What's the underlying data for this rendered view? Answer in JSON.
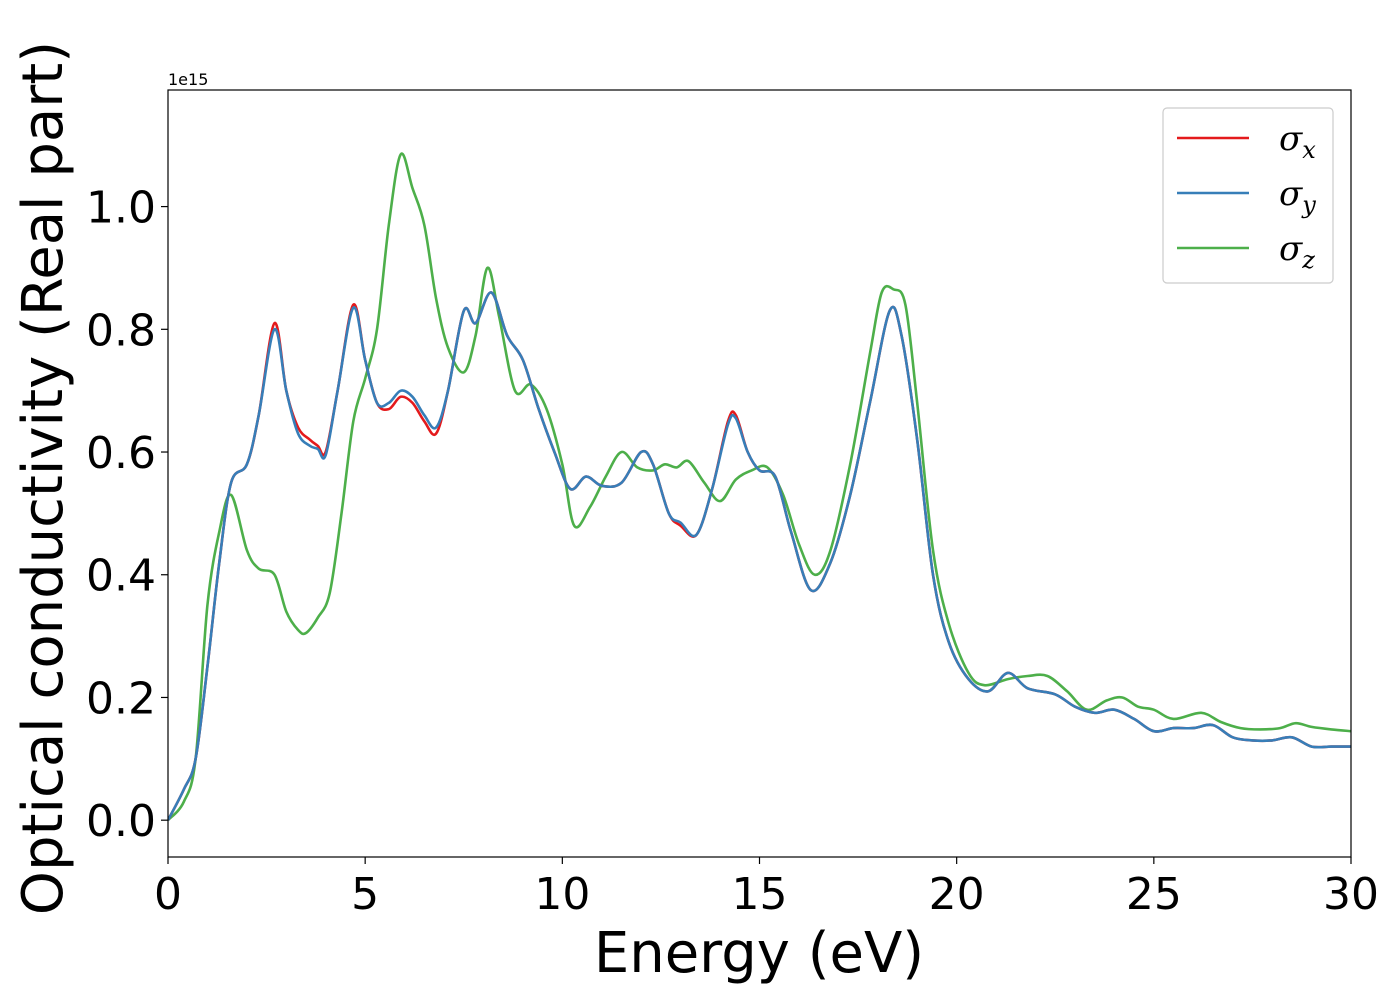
{
  "chart_data": {
    "type": "line",
    "xlabel": "Energy (eV)",
    "ylabel": "Optical conductivity (Real part)",
    "y_offset_text": "1e15",
    "xlim": [
      0,
      30
    ],
    "ylim": [
      -0.06,
      1.19
    ],
    "x_ticks": [
      0,
      5,
      10,
      15,
      20,
      25,
      30
    ],
    "x_tick_labels": [
      "0",
      "5",
      "10",
      "15",
      "20",
      "25",
      "30"
    ],
    "y_ticks": [
      0.0,
      0.2,
      0.4,
      0.6,
      0.8,
      1.0
    ],
    "y_tick_labels": [
      "0.0",
      "0.2",
      "0.4",
      "0.6",
      "0.8",
      "1.0"
    ],
    "grid": false,
    "legend_position": "top-right",
    "series": [
      {
        "name": "σx",
        "symbol": "σ",
        "sub": "x",
        "color": "#e41a1c",
        "points": [
          [
            0,
            0
          ],
          [
            0.4,
            0.05
          ],
          [
            0.7,
            0.1
          ],
          [
            1.0,
            0.25
          ],
          [
            1.3,
            0.42
          ],
          [
            1.6,
            0.55
          ],
          [
            2.0,
            0.58
          ],
          [
            2.3,
            0.66
          ],
          [
            2.7,
            0.81
          ],
          [
            3.0,
            0.7
          ],
          [
            3.3,
            0.64
          ],
          [
            3.6,
            0.62
          ],
          [
            3.8,
            0.61
          ],
          [
            4.0,
            0.6
          ],
          [
            4.3,
            0.7
          ],
          [
            4.7,
            0.84
          ],
          [
            5.0,
            0.75
          ],
          [
            5.3,
            0.68
          ],
          [
            5.6,
            0.67
          ],
          [
            5.9,
            0.69
          ],
          [
            6.2,
            0.68
          ],
          [
            6.5,
            0.65
          ],
          [
            6.8,
            0.63
          ],
          [
            7.1,
            0.7
          ],
          [
            7.5,
            0.83
          ],
          [
            7.8,
            0.81
          ],
          [
            8.2,
            0.86
          ],
          [
            8.6,
            0.79
          ],
          [
            9.0,
            0.75
          ],
          [
            9.4,
            0.67
          ],
          [
            9.8,
            0.6
          ],
          [
            10.2,
            0.54
          ],
          [
            10.6,
            0.56
          ],
          [
            11.0,
            0.545
          ],
          [
            11.5,
            0.55
          ],
          [
            12.0,
            0.6
          ],
          [
            12.3,
            0.58
          ],
          [
            12.7,
            0.5
          ],
          [
            13.0,
            0.48
          ],
          [
            13.4,
            0.465
          ],
          [
            13.8,
            0.54
          ],
          [
            14.2,
            0.65
          ],
          [
            14.4,
            0.66
          ],
          [
            14.7,
            0.6
          ],
          [
            15.0,
            0.57
          ],
          [
            15.4,
            0.56
          ],
          [
            15.8,
            0.47
          ],
          [
            16.3,
            0.375
          ],
          [
            16.8,
            0.42
          ],
          [
            17.3,
            0.53
          ],
          [
            17.8,
            0.68
          ],
          [
            18.3,
            0.83
          ],
          [
            18.6,
            0.79
          ],
          [
            19.0,
            0.62
          ],
          [
            19.4,
            0.4
          ],
          [
            19.8,
            0.29
          ],
          [
            20.3,
            0.23
          ],
          [
            20.8,
            0.21
          ],
          [
            21.3,
            0.24
          ],
          [
            21.8,
            0.215
          ],
          [
            22.5,
            0.205
          ],
          [
            23.0,
            0.185
          ],
          [
            23.5,
            0.175
          ],
          [
            24.0,
            0.18
          ],
          [
            24.5,
            0.165
          ],
          [
            25.0,
            0.145
          ],
          [
            25.5,
            0.15
          ],
          [
            26.0,
            0.15
          ],
          [
            26.5,
            0.155
          ],
          [
            27.0,
            0.135
          ],
          [
            27.5,
            0.13
          ],
          [
            28.0,
            0.13
          ],
          [
            28.5,
            0.135
          ],
          [
            29.0,
            0.12
          ],
          [
            29.5,
            0.12
          ],
          [
            30,
            0.12
          ]
        ]
      },
      {
        "name": "σy",
        "symbol": "σ",
        "sub": "y",
        "color": "#377eb8",
        "points": [
          [
            0,
            0
          ],
          [
            0.4,
            0.05
          ],
          [
            0.7,
            0.1
          ],
          [
            1.0,
            0.25
          ],
          [
            1.3,
            0.42
          ],
          [
            1.6,
            0.55
          ],
          [
            2.0,
            0.58
          ],
          [
            2.3,
            0.66
          ],
          [
            2.7,
            0.8
          ],
          [
            3.0,
            0.7
          ],
          [
            3.3,
            0.63
          ],
          [
            3.6,
            0.61
          ],
          [
            3.8,
            0.605
          ],
          [
            4.0,
            0.595
          ],
          [
            4.3,
            0.7
          ],
          [
            4.7,
            0.835
          ],
          [
            5.0,
            0.75
          ],
          [
            5.3,
            0.68
          ],
          [
            5.6,
            0.68
          ],
          [
            5.9,
            0.7
          ],
          [
            6.2,
            0.69
          ],
          [
            6.5,
            0.66
          ],
          [
            6.8,
            0.64
          ],
          [
            7.1,
            0.7
          ],
          [
            7.5,
            0.83
          ],
          [
            7.8,
            0.81
          ],
          [
            8.2,
            0.86
          ],
          [
            8.6,
            0.79
          ],
          [
            9.0,
            0.75
          ],
          [
            9.4,
            0.67
          ],
          [
            9.8,
            0.6
          ],
          [
            10.2,
            0.54
          ],
          [
            10.6,
            0.56
          ],
          [
            11.0,
            0.545
          ],
          [
            11.5,
            0.55
          ],
          [
            12.0,
            0.6
          ],
          [
            12.3,
            0.58
          ],
          [
            12.7,
            0.5
          ],
          [
            13.0,
            0.485
          ],
          [
            13.4,
            0.465
          ],
          [
            13.8,
            0.54
          ],
          [
            14.2,
            0.645
          ],
          [
            14.4,
            0.655
          ],
          [
            14.7,
            0.6
          ],
          [
            15.0,
            0.57
          ],
          [
            15.4,
            0.56
          ],
          [
            15.8,
            0.47
          ],
          [
            16.3,
            0.375
          ],
          [
            16.8,
            0.42
          ],
          [
            17.3,
            0.53
          ],
          [
            17.8,
            0.68
          ],
          [
            18.3,
            0.83
          ],
          [
            18.6,
            0.79
          ],
          [
            19.0,
            0.62
          ],
          [
            19.4,
            0.4
          ],
          [
            19.8,
            0.29
          ],
          [
            20.3,
            0.23
          ],
          [
            20.8,
            0.21
          ],
          [
            21.3,
            0.24
          ],
          [
            21.8,
            0.215
          ],
          [
            22.5,
            0.205
          ],
          [
            23.0,
            0.185
          ],
          [
            23.5,
            0.175
          ],
          [
            24.0,
            0.18
          ],
          [
            24.5,
            0.165
          ],
          [
            25.0,
            0.145
          ],
          [
            25.5,
            0.15
          ],
          [
            26.0,
            0.15
          ],
          [
            26.5,
            0.155
          ],
          [
            27.0,
            0.135
          ],
          [
            27.5,
            0.13
          ],
          [
            28.0,
            0.13
          ],
          [
            28.5,
            0.135
          ],
          [
            29.0,
            0.12
          ],
          [
            29.5,
            0.12
          ],
          [
            30,
            0.12
          ]
        ]
      },
      {
        "name": "σz",
        "symbol": "σ",
        "sub": "z",
        "color": "#4daf4a",
        "points": [
          [
            0,
            0
          ],
          [
            0.4,
            0.03
          ],
          [
            0.7,
            0.1
          ],
          [
            1.0,
            0.35
          ],
          [
            1.3,
            0.47
          ],
          [
            1.6,
            0.53
          ],
          [
            2.0,
            0.44
          ],
          [
            2.3,
            0.41
          ],
          [
            2.7,
            0.4
          ],
          [
            3.0,
            0.34
          ],
          [
            3.3,
            0.31
          ],
          [
            3.5,
            0.305
          ],
          [
            3.8,
            0.33
          ],
          [
            4.1,
            0.37
          ],
          [
            4.4,
            0.5
          ],
          [
            4.7,
            0.65
          ],
          [
            5.0,
            0.72
          ],
          [
            5.3,
            0.8
          ],
          [
            5.6,
            0.97
          ],
          [
            5.9,
            1.085
          ],
          [
            6.2,
            1.03
          ],
          [
            6.5,
            0.97
          ],
          [
            6.8,
            0.85
          ],
          [
            7.1,
            0.77
          ],
          [
            7.5,
            0.73
          ],
          [
            7.8,
            0.79
          ],
          [
            8.1,
            0.9
          ],
          [
            8.4,
            0.82
          ],
          [
            8.8,
            0.7
          ],
          [
            9.2,
            0.71
          ],
          [
            9.6,
            0.67
          ],
          [
            10.0,
            0.58
          ],
          [
            10.3,
            0.48
          ],
          [
            10.7,
            0.51
          ],
          [
            11.1,
            0.56
          ],
          [
            11.5,
            0.6
          ],
          [
            11.9,
            0.575
          ],
          [
            12.3,
            0.57
          ],
          [
            12.6,
            0.58
          ],
          [
            12.9,
            0.575
          ],
          [
            13.2,
            0.585
          ],
          [
            13.6,
            0.55
          ],
          [
            14.0,
            0.52
          ],
          [
            14.4,
            0.555
          ],
          [
            14.8,
            0.57
          ],
          [
            15.2,
            0.575
          ],
          [
            15.6,
            0.53
          ],
          [
            16.0,
            0.45
          ],
          [
            16.4,
            0.4
          ],
          [
            16.8,
            0.44
          ],
          [
            17.3,
            0.58
          ],
          [
            17.8,
            0.76
          ],
          [
            18.1,
            0.86
          ],
          [
            18.4,
            0.865
          ],
          [
            18.7,
            0.84
          ],
          [
            19.0,
            0.68
          ],
          [
            19.4,
            0.44
          ],
          [
            19.8,
            0.32
          ],
          [
            20.3,
            0.24
          ],
          [
            20.7,
            0.22
          ],
          [
            21.3,
            0.23
          ],
          [
            21.8,
            0.235
          ],
          [
            22.3,
            0.235
          ],
          [
            22.8,
            0.21
          ],
          [
            23.3,
            0.18
          ],
          [
            23.8,
            0.195
          ],
          [
            24.2,
            0.2
          ],
          [
            24.6,
            0.185
          ],
          [
            25.0,
            0.18
          ],
          [
            25.5,
            0.165
          ],
          [
            26.2,
            0.175
          ],
          [
            26.7,
            0.16
          ],
          [
            27.2,
            0.15
          ],
          [
            27.7,
            0.148
          ],
          [
            28.2,
            0.15
          ],
          [
            28.6,
            0.158
          ],
          [
            29.0,
            0.152
          ],
          [
            29.5,
            0.148
          ],
          [
            30,
            0.145
          ]
        ]
      }
    ]
  }
}
